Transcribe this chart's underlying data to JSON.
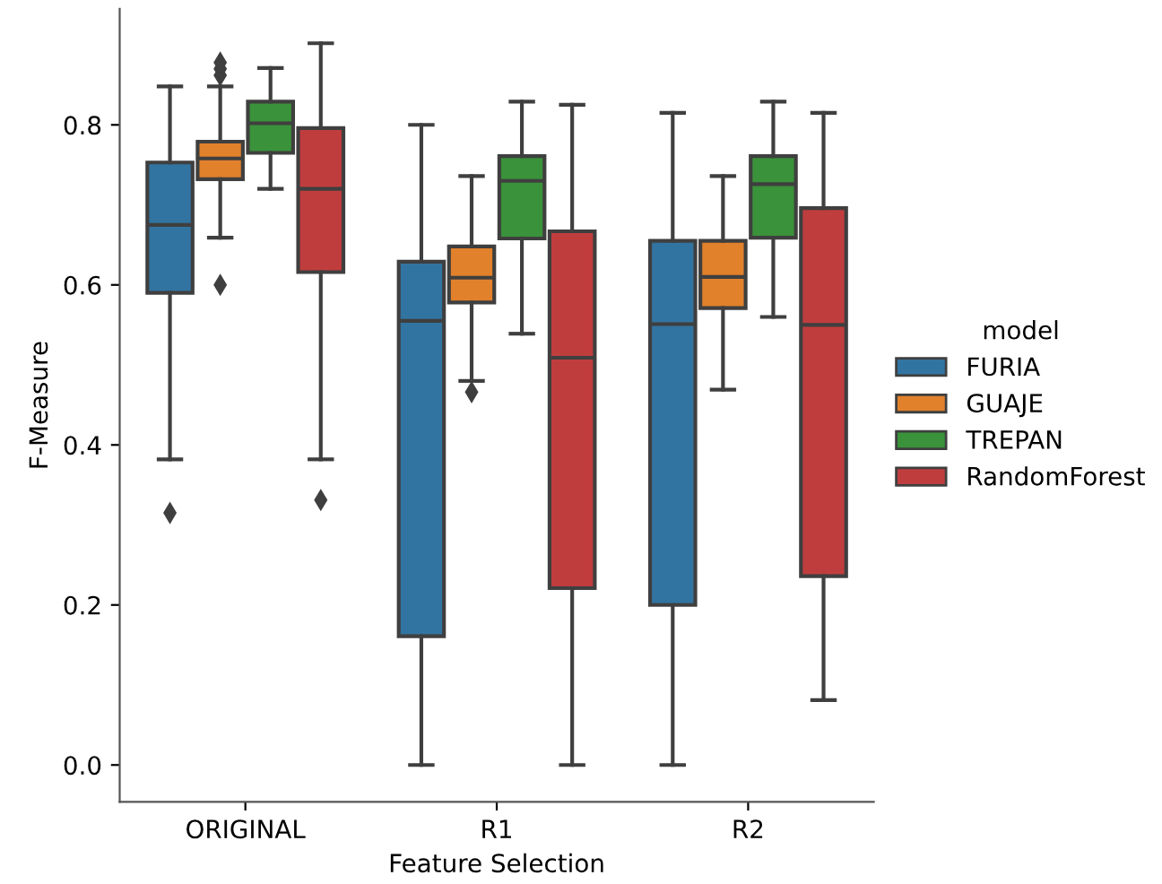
{
  "chart_data": {
    "type": "box",
    "xlabel": "Feature Selection",
    "ylabel": "F-Measure",
    "legend_title": "model",
    "legend": "right",
    "categories": [
      "ORIGINAL",
      "R1",
      "R2"
    ],
    "ylim": [
      -0.046,
      0.945
    ],
    "yticks": [
      {
        "value": 0,
        "label": "0.0"
      },
      0.2,
      0.4,
      0.6,
      0.8
    ],
    "grid": false,
    "series": [
      {
        "name": "FURIA",
        "color": "#3274a1",
        "boxes": [
          {
            "low": 0.382,
            "q1": 0.59,
            "median": 0.675,
            "q3": 0.753,
            "high": 0.848,
            "outliers": [
              0.315
            ]
          },
          {
            "low": 0.0,
            "q1": 0.161,
            "median": 0.555,
            "q3": 0.629,
            "high": 0.8
          },
          {
            "low": 0.0,
            "q1": 0.2,
            "median": 0.551,
            "q3": 0.655,
            "high": 0.815
          }
        ]
      },
      {
        "name": "GUAJE",
        "color": "#e1812c",
        "boxes": [
          {
            "low": 0.659,
            "q1": 0.732,
            "median": 0.758,
            "q3": 0.779,
            "high": 0.848,
            "outliers": [
              0.6,
              0.862,
              0.87,
              0.878
            ]
          },
          {
            "low": 0.48,
            "q1": 0.578,
            "median": 0.609,
            "q3": 0.648,
            "high": 0.736,
            "outliers": [
              0.466
            ]
          },
          {
            "low": 0.469,
            "q1": 0.571,
            "median": 0.61,
            "q3": 0.655,
            "high": 0.736
          }
        ]
      },
      {
        "name": "TREPAN",
        "color": "#3a923a",
        "boxes": [
          {
            "low": 0.72,
            "q1": 0.765,
            "median": 0.802,
            "q3": 0.829,
            "high": 0.871
          },
          {
            "low": 0.539,
            "q1": 0.658,
            "median": 0.73,
            "q3": 0.761,
            "high": 0.829
          },
          {
            "low": 0.56,
            "q1": 0.659,
            "median": 0.726,
            "q3": 0.761,
            "high": 0.829
          }
        ]
      },
      {
        "name": "RandomForest",
        "color": "#c03d3e",
        "boxes": [
          {
            "low": 0.382,
            "q1": 0.616,
            "median": 0.72,
            "q3": 0.796,
            "high": 0.902,
            "outliers": [
              0.331
            ]
          },
          {
            "low": 0.0,
            "q1": 0.221,
            "median": 0.509,
            "q3": 0.667,
            "high": 0.825
          },
          {
            "low": 0.081,
            "q1": 0.236,
            "median": 0.55,
            "q3": 0.696,
            "high": 0.815
          }
        ]
      }
    ]
  }
}
